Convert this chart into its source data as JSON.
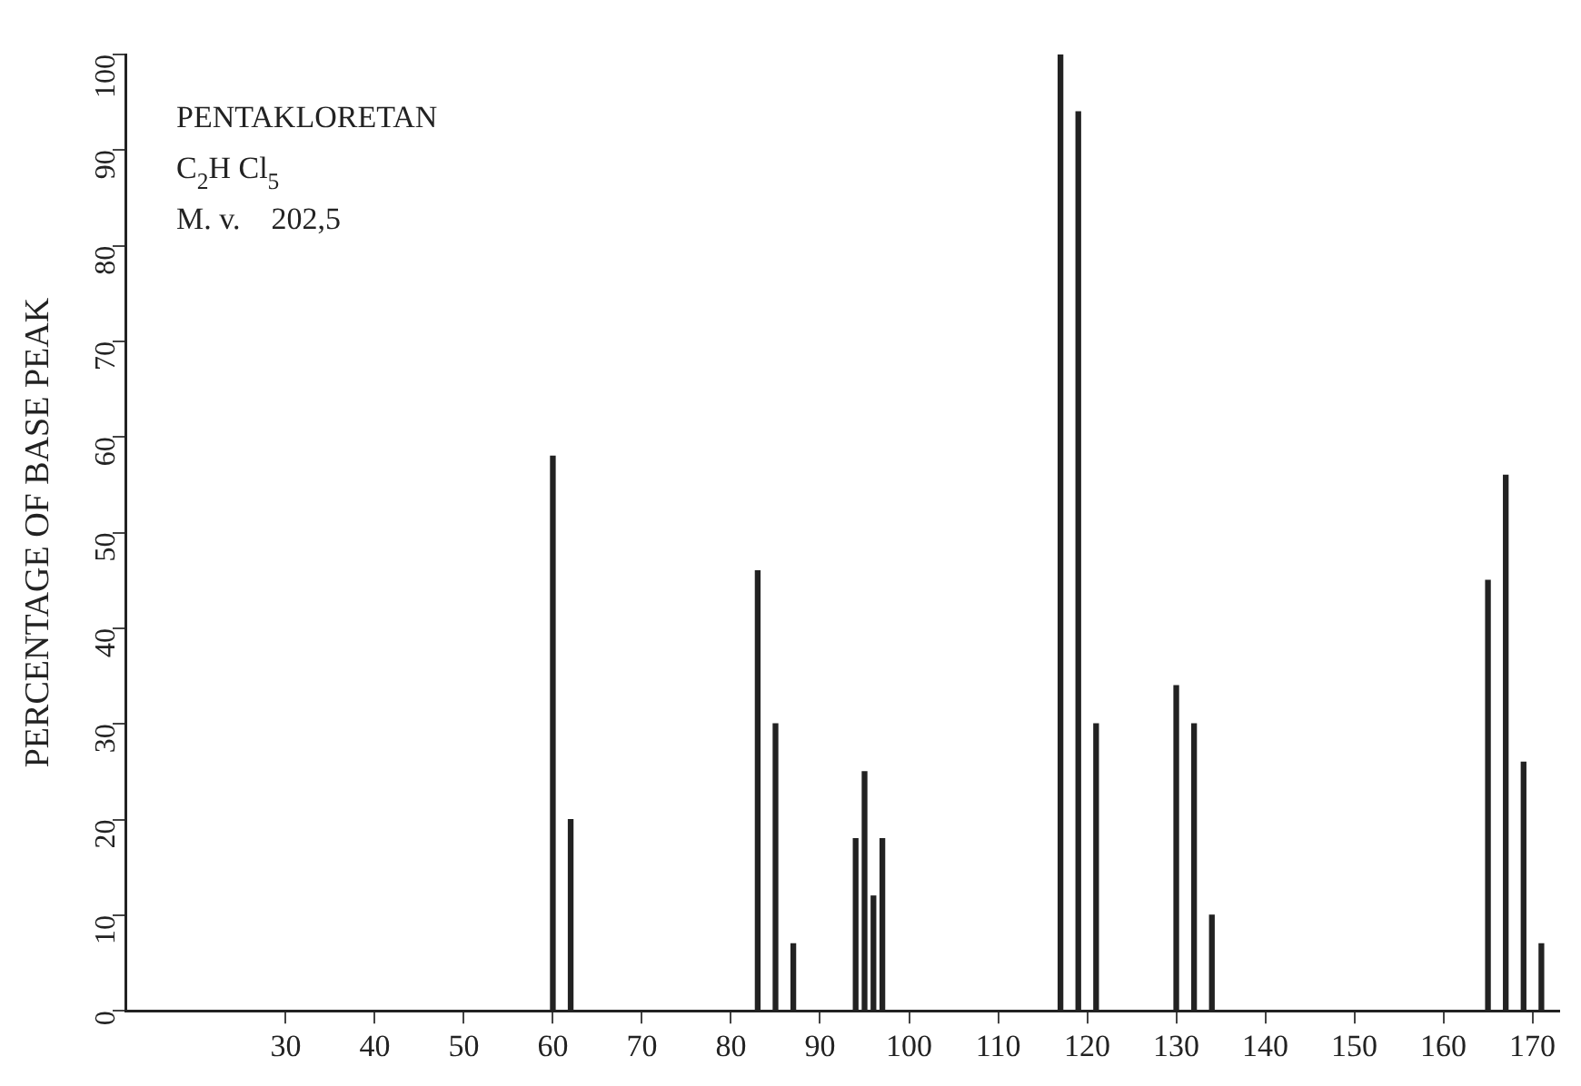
{
  "chart_data": {
    "type": "bar",
    "ylabel": "PERCENTAGE OF BASE PEAK",
    "annotations": [
      "PENTAKLORETAN",
      "C$_{2}$H Cl$_{5}$",
      "M. v.    202,5"
    ],
    "x": [
      60,
      62,
      83,
      85,
      87,
      94,
      95,
      96,
      97,
      117,
      119,
      121,
      130,
      132,
      134,
      165,
      167,
      169,
      171
    ],
    "values": [
      58,
      20,
      46,
      30,
      7,
      18,
      25,
      12,
      18,
      100,
      94,
      30,
      34,
      30,
      10,
      45,
      56,
      26,
      7
    ],
    "color": "#222222",
    "xlim": [
      12,
      173
    ],
    "xticks": [
      30,
      40,
      50,
      60,
      70,
      80,
      90,
      100,
      110,
      120,
      130,
      140,
      150,
      160,
      170
    ],
    "ylim": [
      0,
      100
    ],
    "yticks": [
      0,
      10,
      20,
      30,
      40,
      50,
      60,
      70,
      80,
      90,
      100
    ],
    "grid": false,
    "legend": false
  }
}
